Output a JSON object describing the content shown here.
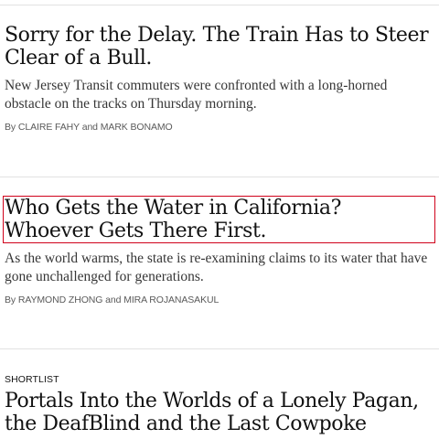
{
  "articles": [
    {
      "headline": "Sorry for the Delay. The Train Has to Steer Clear of a Bull.",
      "summary": "New Jersey Transit commuters were confronted with a long-horned obstacle on the tracks on Thursday morning.",
      "byline": {
        "prefix": "By",
        "author1": "CLAIRE FAHY",
        "conjunction": "and",
        "author2": "MARK BONAMO"
      }
    },
    {
      "headline": "Who Gets the Water in California? Whoever Gets There First.",
      "summary": "As the world warms, the state is re-examining claims to its water that have gone unchallenged for generations.",
      "byline": {
        "prefix": "By",
        "author1": "RAYMOND ZHONG",
        "conjunction": "and",
        "author2": "MIRA ROJANASAKUL"
      }
    },
    {
      "kicker": "SHORTLIST",
      "headline": "Portals Into the Worlds of a Lonely Pagan, the DeafBlind and the Last Cowpoke"
    }
  ],
  "colors": {
    "focus_outline": "#d0021b",
    "divider": "#e2e2e2",
    "headline": "#121212",
    "summary": "#363636"
  }
}
